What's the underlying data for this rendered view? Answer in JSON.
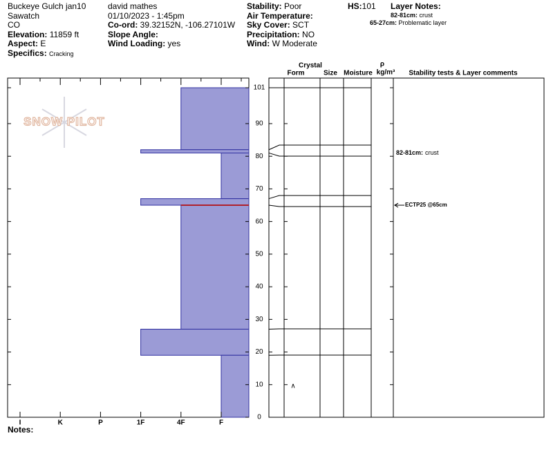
{
  "header": {
    "title": "Buckeye Gulch jan10",
    "range": "Sawatch",
    "state": "CO",
    "elevation": {
      "label": "Elevation:",
      "value": "11859 ft"
    },
    "aspect": {
      "label": "Aspect:",
      "value": "E"
    },
    "specifics": {
      "label": "Specifics:",
      "value": "Cracking"
    },
    "observer": "david mathes",
    "datetime": "01/10/2023 - 1:45pm",
    "coord": {
      "label": "Co-ord:",
      "value": "39.32152N, -106.27101W"
    },
    "slope": {
      "label": "Slope Angle:"
    },
    "wind_loading": {
      "label": "Wind Loading:",
      "value": "yes"
    },
    "stability": {
      "label": "Stability:",
      "value": "Poor"
    },
    "air_temp": {
      "label": "Air Temperature:"
    },
    "sky": {
      "label": "Sky Cover:",
      "value": "SCT"
    },
    "precip": {
      "label": "Precipitation:",
      "value": "NO"
    },
    "wind": {
      "label": "Wind:",
      "value": "W Moderate"
    },
    "hs": {
      "label": "HS:",
      "value": "101"
    },
    "layer_notes": {
      "label": "Layer Notes:",
      "items": [
        {
          "label": "82-81cm:",
          "value": "crust"
        },
        {
          "label": "65-27cm:",
          "value": "Problematic layer"
        }
      ]
    }
  },
  "logo": "SNOW PILOT",
  "columns": {
    "crystal": "Crystal",
    "form": "Form",
    "size": "Size",
    "moisture": "Moisture",
    "rho": "ρ",
    "density": "kg/m³",
    "comments": "Stability tests & Layer comments"
  },
  "notes": "Notes:",
  "chart_data": {
    "type": "snow-profile",
    "categories": [
      "I",
      "K",
      "P",
      "1F",
      "4F",
      "F"
    ],
    "ylim": [
      0,
      101
    ],
    "yticks": [
      0,
      10,
      20,
      30,
      40,
      50,
      60,
      70,
      80,
      90,
      101
    ],
    "color": "#9b9bd6",
    "layers": [
      {
        "top": 101,
        "bottom": 82,
        "hardness": "4F"
      },
      {
        "top": 82,
        "bottom": 81,
        "hardness": "1F"
      },
      {
        "top": 81,
        "bottom": 67,
        "hardness": "F"
      },
      {
        "top": 67,
        "bottom": 65,
        "hardness": "1F"
      },
      {
        "top": 65,
        "bottom": 27,
        "hardness": "4F"
      },
      {
        "top": 27,
        "bottom": 19,
        "hardness": "1F"
      },
      {
        "top": 19,
        "bottom": 0,
        "hardness": "F"
      }
    ],
    "problem_line": {
      "height": 65,
      "color": "#b0202a"
    },
    "grain_form": {
      "height": 10,
      "symbol": "∧"
    },
    "comments": [
      {
        "height": 81.5,
        "label": "82-81cm:",
        "text": "crust"
      },
      {
        "height": 65,
        "text": "ECTP25 @65cm"
      }
    ]
  }
}
